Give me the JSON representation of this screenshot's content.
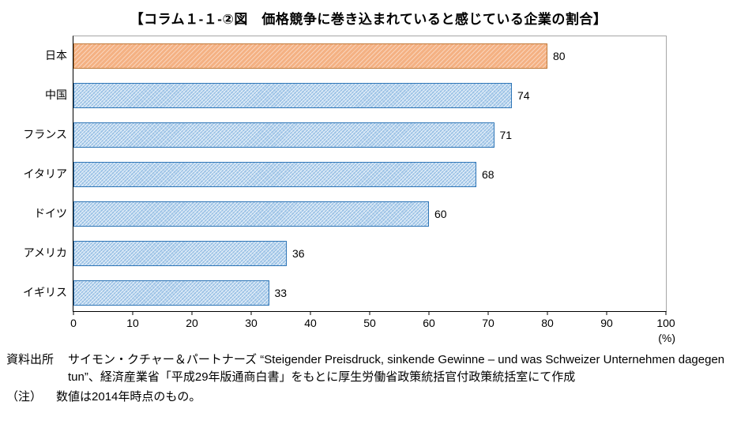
{
  "chart_data": {
    "type": "bar",
    "orientation": "horizontal",
    "title": "【コラム１-１-②図　価格競争に巻き込まれていると感じている企業の割合】",
    "categories": [
      "日本",
      "中国",
      "フランス",
      "イタリア",
      "ドイツ",
      "アメリカ",
      "イギリス"
    ],
    "values": [
      80,
      74,
      71,
      68,
      60,
      36,
      33
    ],
    "xlim": [
      0,
      100
    ],
    "xticks": [
      0,
      10,
      20,
      30,
      40,
      50,
      60,
      70,
      80,
      90,
      100
    ],
    "unit_label": "(%)",
    "highlight_index": 0,
    "grid": "off",
    "legend": "none",
    "colors": {
      "default": "#9dc3e6",
      "bar_border": "#2e75b6",
      "highlight": "#f4b183",
      "highlight_border": "#c07a3a"
    }
  },
  "source": {
    "label": "資料出所",
    "text": "サイモン・クチャー＆パートナーズ “Steigender Preisdruck, sinkende Gewinne – und was Schweizer Unternehmen dagegen tun”、経済産業省「平成29年版通商白書」をもとに厚生労働省政策統括官付政策統括室にて作成",
    "note_label": "（注）",
    "note_text": "数値は2014年時点のもの。"
  }
}
